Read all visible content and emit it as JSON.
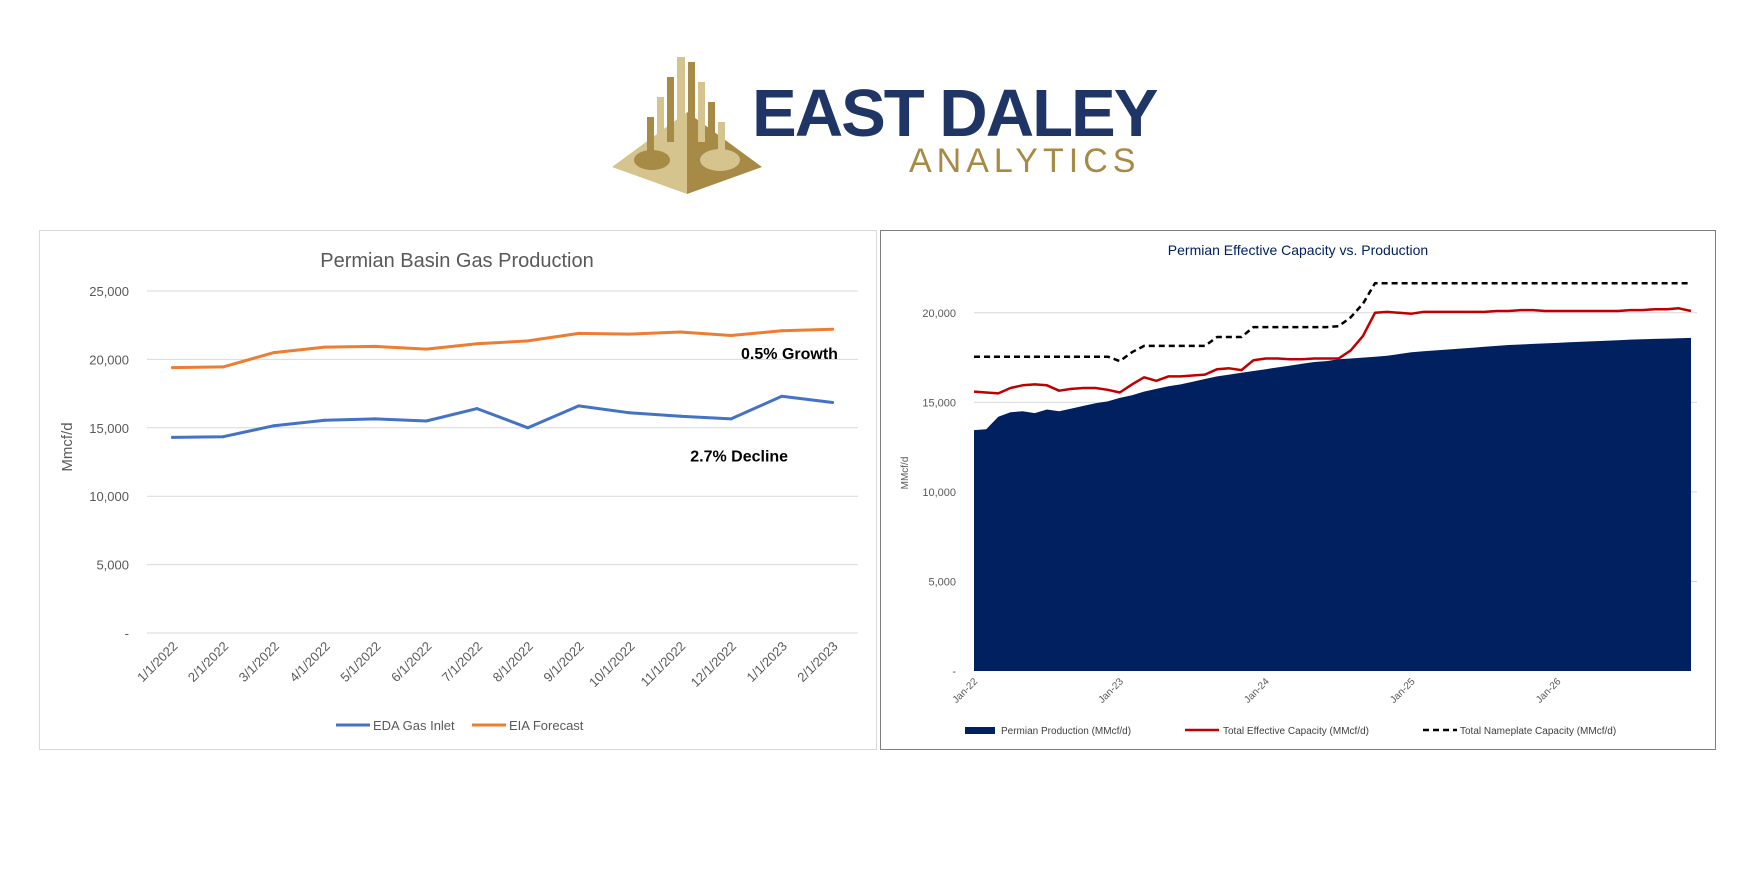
{
  "logo": {
    "name_line1": "EAST DALEY",
    "name_line2": "ANALYTICS",
    "colors": {
      "navy": "#1f3566",
      "gold": "#a68a45",
      "light_gold": "#d6c48e"
    }
  },
  "chart_data": [
    {
      "type": "line",
      "title": "Permian Basin Gas Production",
      "xlabel": "",
      "ylabel": "Mmcf/d",
      "ylim": [
        0,
        25000
      ],
      "yticks": [
        0,
        5000,
        10000,
        15000,
        20000,
        25000
      ],
      "ytick_labels": [
        "-",
        "5,000",
        "10,000",
        "15,000",
        "20,000",
        "25,000"
      ],
      "grid": true,
      "legend": "bottom",
      "categories": [
        "1/1/2022",
        "2/1/2022",
        "3/1/2022",
        "4/1/2022",
        "5/1/2022",
        "6/1/2022",
        "7/1/2022",
        "8/1/2022",
        "9/1/2022",
        "10/1/2022",
        "11/1/2022",
        "12/1/2022",
        "1/1/2023",
        "2/1/2023"
      ],
      "series": [
        {
          "name": "EDA Gas Inlet",
          "color": "#4472c4",
          "values": [
            14300,
            14350,
            15150,
            15550,
            15650,
            15500,
            16400,
            15000,
            16600,
            16100,
            15850,
            15650,
            17300,
            16850
          ]
        },
        {
          "name": "EIA Forecast",
          "color": "#ed7d31",
          "values": [
            19400,
            19450,
            20500,
            20900,
            20950,
            20750,
            21150,
            21350,
            21900,
            21850,
            22000,
            21750,
            22100,
            22200
          ]
        }
      ],
      "annotations": [
        {
          "text": "0.5% Growth",
          "x": "12/1/2022",
          "y": 20400
        },
        {
          "text": "2.7% Decline",
          "x": "11/1/2022",
          "y": 12900
        }
      ]
    },
    {
      "type": "area",
      "title": "Permian Effective Capacity vs. Production",
      "xlabel": "",
      "ylabel": "MMcf/d",
      "ylim": [
        0,
        22500
      ],
      "yticks": [
        0,
        5000,
        10000,
        15000,
        20000
      ],
      "ytick_labels": [
        "-",
        "5,000",
        "10,000",
        "15,000",
        "20,000"
      ],
      "grid": true,
      "legend": "bottom",
      "x_start": "Jan-22",
      "x_end": "Dec-26",
      "x_ticks": [
        "Jan-22",
        "Jan-23",
        "Jan-24",
        "Jan-25",
        "Jan-26"
      ],
      "series": [
        {
          "name": "Permian Production (MMcf/d)",
          "style": "area",
          "color": "#002060",
          "values": [
            13450,
            13500,
            14200,
            14450,
            14500,
            14400,
            14600,
            14500,
            14650,
            14800,
            14950,
            15050,
            15250,
            15400,
            15600,
            15750,
            15900,
            16000,
            16150,
            16300,
            16450,
            16550,
            16650,
            16750,
            16850,
            16950,
            17050,
            17150,
            17250,
            17300,
            17400,
            17450,
            17500,
            17550,
            17600,
            17700,
            17800,
            17850,
            17900,
            17950,
            18000,
            18050,
            18100,
            18150,
            18200,
            18230,
            18260,
            18290,
            18320,
            18350,
            18380,
            18410,
            18440,
            18470,
            18500,
            18520,
            18540,
            18560,
            18580,
            18600
          ]
        },
        {
          "name": "Total Effective Capacity (MMcf/d)",
          "style": "line",
          "color": "#c00000",
          "values": [
            15600,
            15550,
            15500,
            15800,
            15950,
            16000,
            15950,
            15650,
            15750,
            15800,
            15800,
            15700,
            15550,
            16000,
            16400,
            16200,
            16450,
            16450,
            16500,
            16550,
            16850,
            16900,
            16800,
            17350,
            17450,
            17450,
            17400,
            17400,
            17450,
            17450,
            17450,
            17900,
            18700,
            20000,
            20050,
            20000,
            19950,
            20050,
            20050,
            20050,
            20050,
            20050,
            20050,
            20100,
            20100,
            20150,
            20150,
            20100,
            20100,
            20100,
            20100,
            20100,
            20100,
            20100,
            20150,
            20150,
            20200,
            20200,
            20250,
            20100
          ]
        },
        {
          "name": "Total Nameplate Capacity (MMcf/d)",
          "style": "dashed",
          "color": "#000000",
          "values": [
            17550,
            17550,
            17550,
            17550,
            17550,
            17550,
            17550,
            17550,
            17550,
            17550,
            17550,
            17550,
            17300,
            17800,
            18150,
            18150,
            18150,
            18150,
            18150,
            18150,
            18650,
            18650,
            18650,
            19200,
            19200,
            19200,
            19200,
            19200,
            19200,
            19200,
            19250,
            19750,
            20500,
            21650,
            21650,
            21650,
            21650,
            21650,
            21650,
            21650,
            21650,
            21650,
            21650,
            21650,
            21650,
            21650,
            21650,
            21650,
            21650,
            21650,
            21650,
            21650,
            21650,
            21650,
            21650,
            21650,
            21650,
            21650,
            21650,
            21650
          ]
        }
      ]
    }
  ]
}
